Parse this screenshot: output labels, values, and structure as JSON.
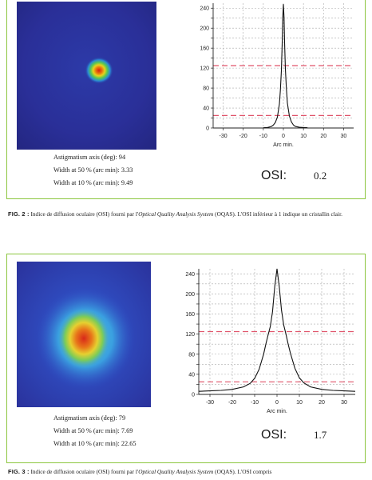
{
  "figures": [
    {
      "id": "fig2",
      "metrics": {
        "astigmatism": "Astigmatism axis (deg): 94",
        "width50": "Width at 50 % (arc min): 3.33",
        "width10": "Width at 10 % (arc min): 9.49"
      },
      "osi_label": "OSI:",
      "osi_value": "0.2",
      "caption": {
        "label": "FIG. 2 :",
        "text_before": " Indice de diffusion oculaire (OSI) fourni par l'",
        "system_name": "Optical Quality Analysis System",
        "text_after": " (OQAS). L'OSI inférieur à 1 indique un cristallin clair."
      },
      "chart_data": {
        "type": "line",
        "xlabel": "Arc min.",
        "xlim": [
          -35,
          35
        ],
        "ylim": [
          0,
          250
        ],
        "x_ticks": [
          -30,
          -20,
          -10,
          0,
          10,
          20,
          30
        ],
        "y_ticks": [
          0,
          20,
          40,
          60,
          80,
          100,
          120,
          140,
          160,
          180,
          200,
          220,
          240
        ],
        "y_tick_labels_shown": [
          0,
          40,
          80,
          120,
          160,
          200,
          240
        ],
        "grid": true,
        "reference_lines": [
          125,
          25
        ],
        "series": [
          {
            "values": [
              [
                -10,
                0.5
              ],
              [
                -8,
                1
              ],
              [
                -6,
                3
              ],
              [
                -5,
                6
              ],
              [
                -4,
                11
              ],
              [
                -3,
                22
              ],
              [
                -2,
                48
              ],
              [
                -1.5,
                75
              ],
              [
                -1,
                115
              ],
              [
                -0.6,
                170
              ],
              [
                -0.3,
                220
              ],
              [
                0,
                248
              ],
              [
                0.3,
                222
              ],
              [
                0.6,
                172
              ],
              [
                1,
                118
              ],
              [
                1.5,
                78
              ],
              [
                2,
                50
              ],
              [
                3,
                24
              ],
              [
                4,
                12
              ],
              [
                5,
                6
              ],
              [
                6,
                3
              ],
              [
                8,
                1.5
              ],
              [
                10,
                1
              ],
              [
                12,
                0.5
              ]
            ]
          }
        ]
      }
    },
    {
      "id": "fig3",
      "metrics": {
        "astigmatism": "Astigmatism axis (deg): 79",
        "width50": "Width at 50 % (arc min): 7.69",
        "width10": "Width at 10 % (arc min): 22.65"
      },
      "osi_label": "OSI:",
      "osi_value": "1.7",
      "caption": {
        "label": "FIG. 3 :",
        "text_before": " Indice de diffusion oculaire (OSI) fourni par l'",
        "system_name": "Optical Quality Analysis System",
        "text_after": " (OQAS). L'OSI compris"
      },
      "chart_data": {
        "type": "line",
        "xlabel": "Arc min.",
        "xlim": [
          -35,
          35
        ],
        "ylim": [
          0,
          250
        ],
        "x_ticks": [
          -30,
          -20,
          -10,
          0,
          10,
          20,
          30
        ],
        "y_ticks": [
          0,
          20,
          40,
          60,
          80,
          100,
          120,
          140,
          160,
          180,
          200,
          220,
          240
        ],
        "y_tick_labels_shown": [
          0,
          40,
          80,
          120,
          160,
          200,
          240
        ],
        "grid": true,
        "reference_lines": [
          125,
          25
        ],
        "series": [
          {
            "values": [
              [
                -35,
                6
              ],
              [
                -30,
                7
              ],
              [
                -25,
                8
              ],
              [
                -20,
                10
              ],
              [
                -15,
                15
              ],
              [
                -12,
                22
              ],
              [
                -10,
                32
              ],
              [
                -8,
                50
              ],
              [
                -6,
                80
              ],
              [
                -5,
                100
              ],
              [
                -4,
                118
              ],
              [
                -3,
                135
              ],
              [
                -2,
                165
              ],
              [
                -1,
                215
              ],
              [
                0,
                250
              ],
              [
                1,
                215
              ],
              [
                2,
                168
              ],
              [
                3,
                138
              ],
              [
                4,
                120
              ],
              [
                5,
                100
              ],
              [
                6,
                82
              ],
              [
                8,
                52
              ],
              [
                10,
                33
              ],
              [
                12,
                23
              ],
              [
                15,
                15
              ],
              [
                20,
                10
              ],
              [
                25,
                8
              ],
              [
                30,
                7
              ],
              [
                35,
                6
              ]
            ]
          }
        ]
      }
    }
  ],
  "colors": {
    "panel_border": "#8cc63f",
    "reference_line": "#e0556b",
    "grid": "#aaaaaa",
    "curve": "#111111"
  }
}
